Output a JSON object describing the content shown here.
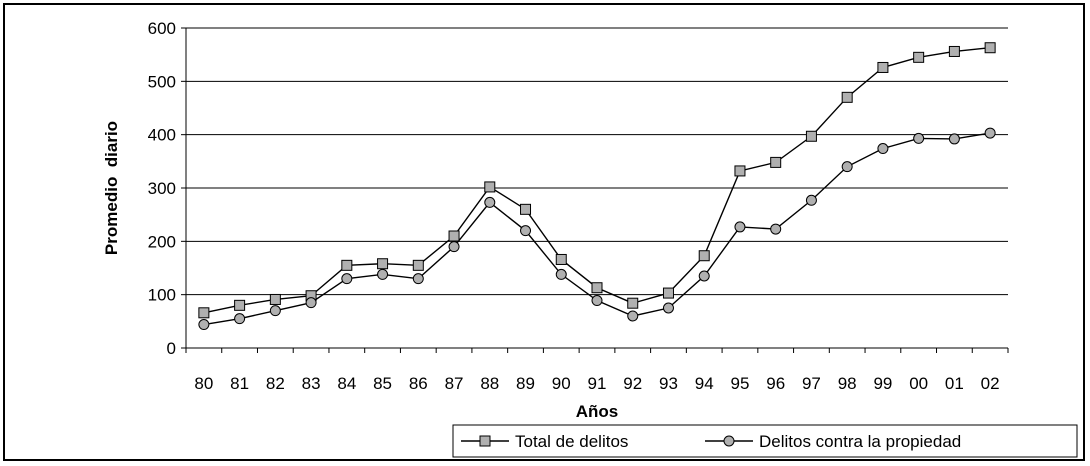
{
  "chart_data": {
    "type": "line",
    "title": "",
    "xlabel": "Años",
    "ylabel": "Promedio  diario",
    "ylim": [
      0,
      600
    ],
    "yticks": [
      0,
      100,
      200,
      300,
      400,
      500,
      600
    ],
    "grid": true,
    "legend_position": "bottom-right",
    "categories": [
      "80",
      "81",
      "82",
      "83",
      "84",
      "85",
      "86",
      "87",
      "88",
      "89",
      "90",
      "91",
      "92",
      "93",
      "94",
      "95",
      "96",
      "97",
      "98",
      "99",
      "00",
      "01",
      "02"
    ],
    "series": [
      {
        "name": "Total de delitos",
        "marker": "square",
        "color": "#000000",
        "marker_color": "#b0b0b0",
        "values": [
          66,
          80,
          91,
          98,
          155,
          158,
          155,
          210,
          302,
          260,
          166,
          113,
          84,
          103,
          173,
          332,
          348,
          397,
          470,
          526,
          545,
          556,
          563
        ]
      },
      {
        "name": "Delitos contra la propiedad",
        "marker": "circle",
        "color": "#000000",
        "marker_color": "#b0b0b0",
        "values": [
          44,
          55,
          70,
          85,
          130,
          138,
          130,
          190,
          273,
          220,
          138,
          89,
          60,
          75,
          135,
          227,
          223,
          277,
          340,
          374,
          393,
          392,
          403
        ]
      }
    ]
  }
}
